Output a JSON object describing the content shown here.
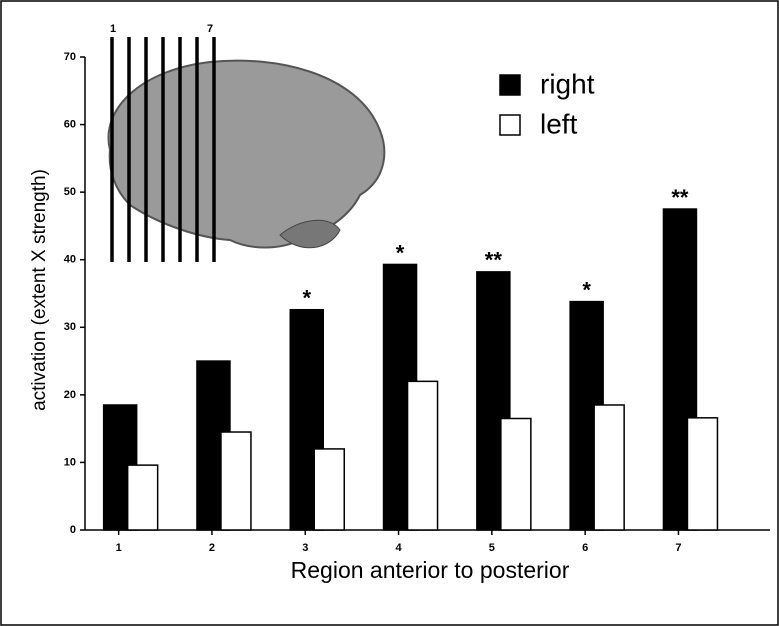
{
  "chart_data": {
    "type": "bar",
    "y_label": "activation (extent X strength)",
    "x_label": "Region anterior to posterior",
    "categories": [
      "1",
      "2",
      "3",
      "4",
      "5",
      "6",
      "7"
    ],
    "series": [
      {
        "name": "right",
        "color": "#000000",
        "values": [
          18.5,
          25,
          32.6,
          39.3,
          38.2,
          33.8,
          47.5
        ]
      },
      {
        "name": "left",
        "color": "#ffffff",
        "values": [
          9.6,
          14.5,
          12,
          22,
          16.5,
          18.5,
          16.6
        ]
      }
    ],
    "annotations": [
      null,
      null,
      "*",
      "*",
      "**",
      "*",
      "**"
    ],
    "inset_labels": [
      "1",
      "7"
    ],
    "ylim": [
      0,
      70
    ],
    "yticks": [
      0,
      10,
      20,
      30,
      40,
      50,
      60,
      70
    ],
    "legend": "upper right"
  }
}
